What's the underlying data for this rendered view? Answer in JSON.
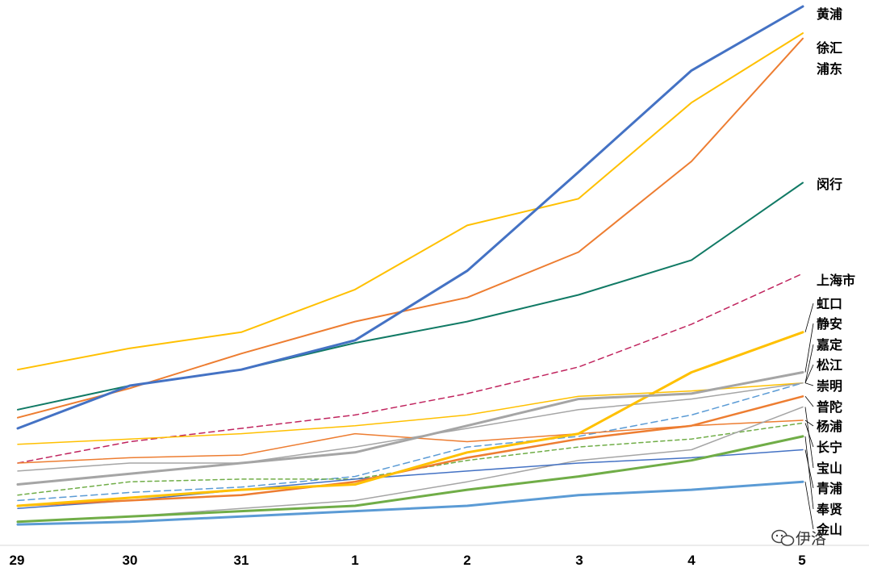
{
  "chart_data": {
    "type": "line",
    "title": "",
    "xlabel": "",
    "ylabel": "",
    "categories": [
      "29",
      "30",
      "31",
      "1",
      "2",
      "3",
      "4",
      "5"
    ],
    "ylim": [
      0,
      100
    ],
    "grid": false,
    "legend": "right-end labels",
    "series": [
      {
        "name": "黄浦",
        "color": "#4472C4",
        "width": 3,
        "dash": "",
        "values": [
          21,
          29,
          32,
          37.5,
          50.5,
          69,
          88,
          100
        ]
      },
      {
        "name": "徐汇",
        "color": "#FFC000",
        "width": 2,
        "dash": "",
        "values": [
          32,
          36,
          39,
          47,
          59,
          64,
          82,
          95
        ]
      },
      {
        "name": "浦东",
        "color": "#ED7D31",
        "width": 2,
        "dash": "",
        "values": [
          23,
          28.5,
          35,
          41,
          45.5,
          54,
          71,
          94
        ]
      },
      {
        "name": "闵行",
        "color": "#117A65",
        "width": 2,
        "dash": "",
        "values": [
          24.5,
          29,
          32,
          37,
          41,
          46,
          52.5,
          67
        ]
      },
      {
        "name": "上海市",
        "color": "#C0245E",
        "width": 1.5,
        "dash": "7,5",
        "values": [
          14.5,
          18.5,
          21,
          23.5,
          27.5,
          32.5,
          40.5,
          50
        ]
      },
      {
        "name": "虹口",
        "color": "#FFC000",
        "width": 3,
        "dash": "",
        "values": [
          6.5,
          8,
          9.5,
          10.5,
          16.5,
          20,
          31.5,
          39
        ]
      },
      {
        "name": "静安",
        "color": "#A5A5A5",
        "width": 3,
        "dash": "",
        "values": [
          10.5,
          12.5,
          14.5,
          16.5,
          21.5,
          26.5,
          27.5,
          31.5
        ]
      },
      {
        "name": "嘉定",
        "color": "#FFC000",
        "width": 1.5,
        "dash": "",
        "values": [
          18,
          19,
          20,
          21.5,
          23.5,
          27,
          28,
          29.5
        ]
      },
      {
        "name": "松江",
        "color": "#5B9BD5",
        "width": 1.5,
        "dash": "8,5",
        "values": [
          7.5,
          9,
          10,
          12,
          17.5,
          19.5,
          23.5,
          29.5
        ]
      },
      {
        "name": "崇明",
        "color": "#A5A5A5",
        "width": 1.5,
        "dash": "",
        "values": [
          13,
          14.5,
          14.5,
          17.5,
          21,
          24.5,
          26.5,
          29.5
        ]
      },
      {
        "name": "普陀",
        "color": "#ED7D31",
        "width": 2.5,
        "dash": "",
        "values": [
          6.5,
          7.5,
          8.5,
          11,
          15.5,
          19,
          21.5,
          27
        ]
      },
      {
        "name": "杨浦",
        "color": "#ED7D31",
        "width": 1.5,
        "dash": "",
        "values": [
          14.5,
          15.5,
          16,
          20,
          18.5,
          20,
          21.5,
          22.5
        ]
      },
      {
        "name": "长宁",
        "color": "#70AD47",
        "width": 1.5,
        "dash": "5,4",
        "values": [
          8.5,
          11,
          11.5,
          11.5,
          15,
          17.5,
          19,
          22
        ]
      },
      {
        "name": "宝山",
        "color": "#A5A5A5",
        "width": 1.5,
        "dash": "",
        "values": [
          3.5,
          4.5,
          6,
          7.5,
          11,
          15,
          17,
          25
        ]
      },
      {
        "name": "青浦",
        "color": "#4472C4",
        "width": 1.5,
        "dash": "",
        "values": [
          6,
          7.5,
          9.5,
          11.5,
          13,
          14.5,
          15.5,
          17
        ]
      },
      {
        "name": "奉贤",
        "color": "#70AD47",
        "width": 3,
        "dash": "",
        "values": [
          3.5,
          4.5,
          5.5,
          6.5,
          9.5,
          12,
          15,
          19.5
        ]
      },
      {
        "name": "金山",
        "color": "#5B9BD5",
        "width": 3,
        "dash": "",
        "values": [
          3,
          3.5,
          4.5,
          5.5,
          6.5,
          8.5,
          9.5,
          11
        ]
      }
    ]
  },
  "watermark": {
    "text": "伊洛",
    "icon": "wechat-icon"
  }
}
